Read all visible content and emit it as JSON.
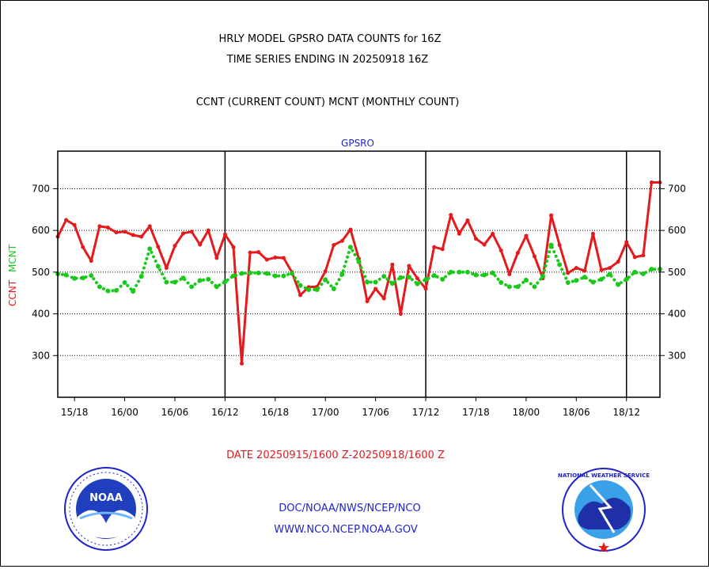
{
  "header": {
    "title_line1": "HRLY MODEL GPSRO DATA COUNTS for 16Z",
    "title_line2": "TIME SERIES ENDING IN 20250918 16Z",
    "subtitle": "CCNT (CURRENT COUNT) MCNT (MONTHLY COUNT)"
  },
  "footer": {
    "date_range": "DATE 20250915/1600 Z-20250918/1600 Z",
    "org_line": "DOC/NOAA/NWS/NCEP/NCO",
    "url_line": "WWW.NCO.NCEP.NOAA.GOV",
    "noaa_logo_text": "NOAA",
    "nws_logo_text": "NATIONAL WEATHER SERVICE"
  },
  "colors": {
    "ccnt": "#e41a1c",
    "mcnt": "#19c919",
    "text_blue": "#1f24c8",
    "axis": "#000000"
  },
  "chart_data": {
    "type": "line",
    "title": "GPSRO",
    "ylabel_left_series1": "CCNT",
    "ylabel_left_series2": "MCNT",
    "ylim": [
      200,
      790
    ],
    "yticks": [
      300,
      400,
      500,
      600,
      700
    ],
    "grid": true,
    "x_ticks": [
      {
        "label": "15/18",
        "hour_index": 2
      },
      {
        "label": "16/00",
        "hour_index": 8
      },
      {
        "label": "16/06",
        "hour_index": 14
      },
      {
        "label": "16/12",
        "hour_index": 20
      },
      {
        "label": "16/18",
        "hour_index": 26
      },
      {
        "label": "17/00",
        "hour_index": 32
      },
      {
        "label": "17/06",
        "hour_index": 38
      },
      {
        "label": "17/12",
        "hour_index": 44
      },
      {
        "label": "17/18",
        "hour_index": 50
      },
      {
        "label": "18/00",
        "hour_index": 56
      },
      {
        "label": "18/06",
        "hour_index": 62
      },
      {
        "label": "18/12",
        "hour_index": 68
      }
    ],
    "x_start_hour": "15/16",
    "x_count": 73,
    "series": [
      {
        "name": "CCNT",
        "style": "solid",
        "values": [
          585,
          625,
          613,
          560,
          527,
          610,
          607,
          595,
          597,
          589,
          585,
          610,
          561,
          510,
          563,
          593,
          597,
          566,
          600,
          534,
          590,
          560,
          281,
          547,
          548,
          530,
          535,
          534,
          500,
          445,
          464,
          465,
          502,
          565,
          575,
          602,
          532,
          430,
          460,
          437,
          518,
          400,
          515,
          485,
          460,
          560,
          555,
          637,
          592,
          624,
          580,
          566,
          592,
          552,
          495,
          546,
          587,
          538,
          485,
          636,
          565,
          498,
          510,
          503,
          592,
          505,
          510,
          525,
          572,
          536,
          540,
          715,
          715
        ]
      },
      {
        "name": "MCNT",
        "style": "dotted",
        "values": [
          496,
          493,
          485,
          486,
          492,
          465,
          455,
          456,
          475,
          454,
          490,
          556,
          514,
          476,
          476,
          486,
          465,
          480,
          483,
          465,
          477,
          491,
          497,
          498,
          498,
          497,
          491,
          491,
          497,
          468,
          458,
          458,
          482,
          460,
          495,
          560,
          525,
          476,
          476,
          490,
          473,
          487,
          488,
          472,
          482,
          492,
          483,
          500,
          500,
          500,
          493,
          493,
          498,
          475,
          465,
          465,
          481,
          465,
          490,
          565,
          518,
          475,
          480,
          488,
          476,
          483,
          495,
          470,
          483,
          500,
          496,
          507,
          507
        ]
      }
    ]
  }
}
